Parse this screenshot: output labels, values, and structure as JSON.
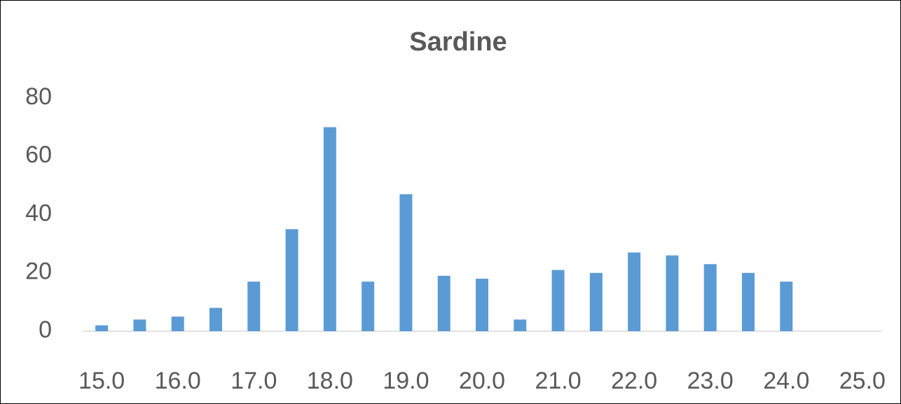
{
  "chart_data": {
    "type": "bar",
    "title": "Sardine",
    "categories": [
      "15.0",
      null,
      "16.0",
      null,
      "17.0",
      null,
      "18.0",
      null,
      "19.0",
      null,
      "20.0",
      null,
      "21.0",
      null,
      "22.0",
      null,
      "23.0",
      null,
      "24.0",
      null,
      "25.0"
    ],
    "values": [
      2,
      4,
      5,
      8,
      17,
      35,
      70,
      17,
      47,
      19,
      18,
      4,
      21,
      20,
      27,
      26,
      23,
      20,
      17,
      0,
      0
    ],
    "color": "#5b9bd5",
    "ylim": [
      0,
      80
    ],
    "yticks": [
      0,
      20,
      40,
      60,
      80
    ],
    "grid": false
  }
}
